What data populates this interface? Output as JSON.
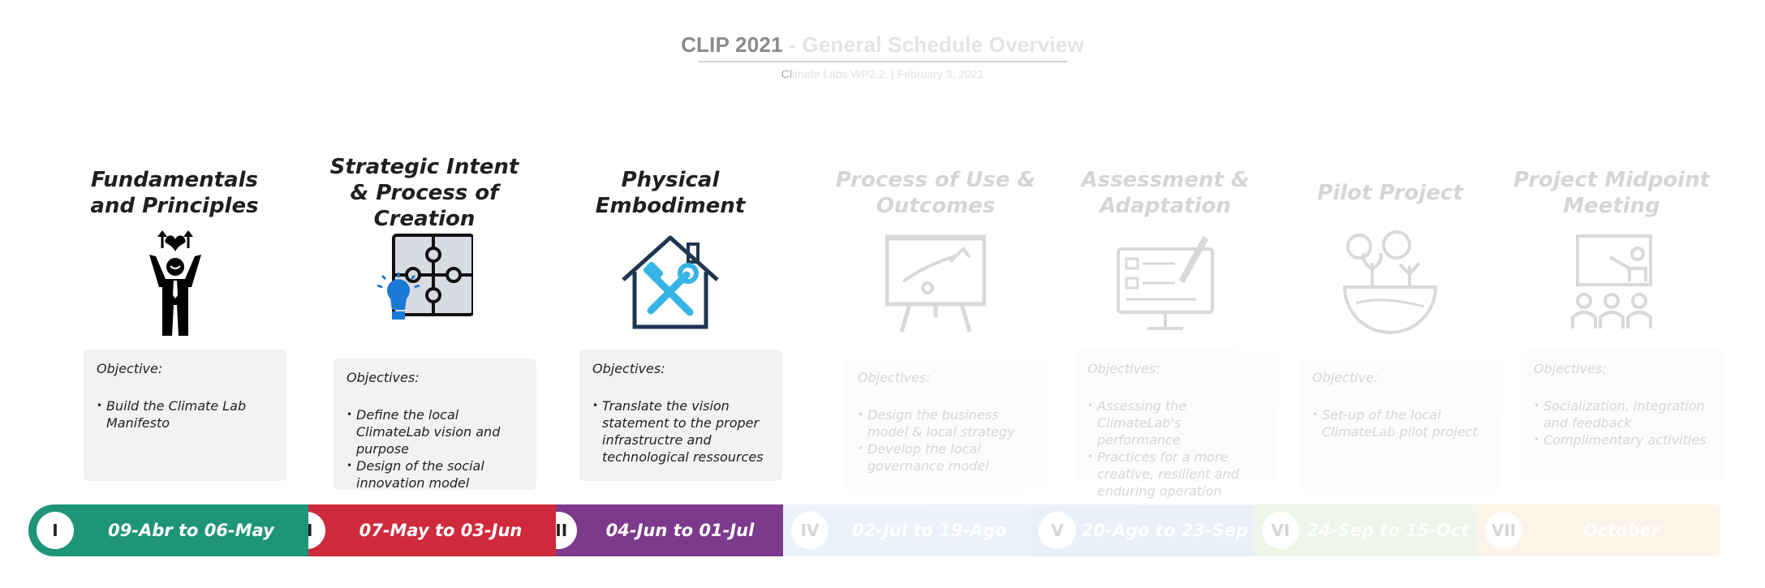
{
  "header": {
    "title_strong": "CLIP 2021",
    "title_rest": " - General Schedule Overview",
    "subtitle_strong": "Cl",
    "subtitle_rest": "imate Labs WP2.2.  |  February 3, 2021"
  },
  "phases": [
    {
      "title": "Fundamentals and Principles",
      "icon": "person-heart-icon",
      "objective_label": "Objective:",
      "bullets": [
        "Build the Climate Lab Manifesto"
      ],
      "numeral": "I",
      "dates": "09-Abr to 06-May",
      "color": "#1e9478",
      "active": true
    },
    {
      "title": "Strategic Intent & Process of Creation",
      "icon": "puzzle-lightbulb-icon",
      "objective_label": "Objectives:",
      "bullets": [
        "Define the local ClimateLab vision and purpose",
        "Design of the social innovation model"
      ],
      "numeral": "II",
      "dates": "07-May to 03-Jun",
      "color": "#cf2a3c",
      "active": true
    },
    {
      "title": "Physical Embodiment",
      "icon": "house-tools-icon",
      "objective_label": "Objectives:",
      "bullets": [
        "Translate the vision statement to the proper infrastructre and technological ressources"
      ],
      "numeral": "III",
      "dates": "04-Jun to 01-Jul",
      "color": "#7d3a8c",
      "active": true
    },
    {
      "title": "Process of Use & Outcomes",
      "icon": "strategy-board-icon",
      "objective_label": "Objectives:",
      "bullets": [
        "Design the business model & local strategy",
        "Develop the local governance model"
      ],
      "numeral": "IV",
      "dates": "02-Jul to 19-Ago",
      "color": "#9bbbe3",
      "active": false
    },
    {
      "title": "Assessment & Adaptation",
      "icon": "monitor-checklist-icon",
      "objective_label": "Objectives:",
      "bullets": [
        "Assessing the ClimateLab's performance",
        "Practices for a more creative, resilient and enduring operation"
      ],
      "numeral": "V",
      "dates": "20-Ago to 23-Sep",
      "color": "#8aaede",
      "active": false
    },
    {
      "title": "Pilot Project",
      "icon": "earth-plants-icon",
      "objective_label": "Objective:",
      "bullets": [
        "Set-up of the local ClimateLab pilot project"
      ],
      "numeral": "VI",
      "dates": "24-Sep to 15-Oct",
      "color": "#9fd38b",
      "active": false
    },
    {
      "title": "Project Midpoint Meeting",
      "icon": "presentation-audience-icon",
      "objective_label": "Objectives:",
      "bullets": [
        "Socialization, integration and feedback",
        "Complimentary activities"
      ],
      "numeral": "VII",
      "dates": "October",
      "color": "#f9c58c",
      "active": false
    }
  ]
}
